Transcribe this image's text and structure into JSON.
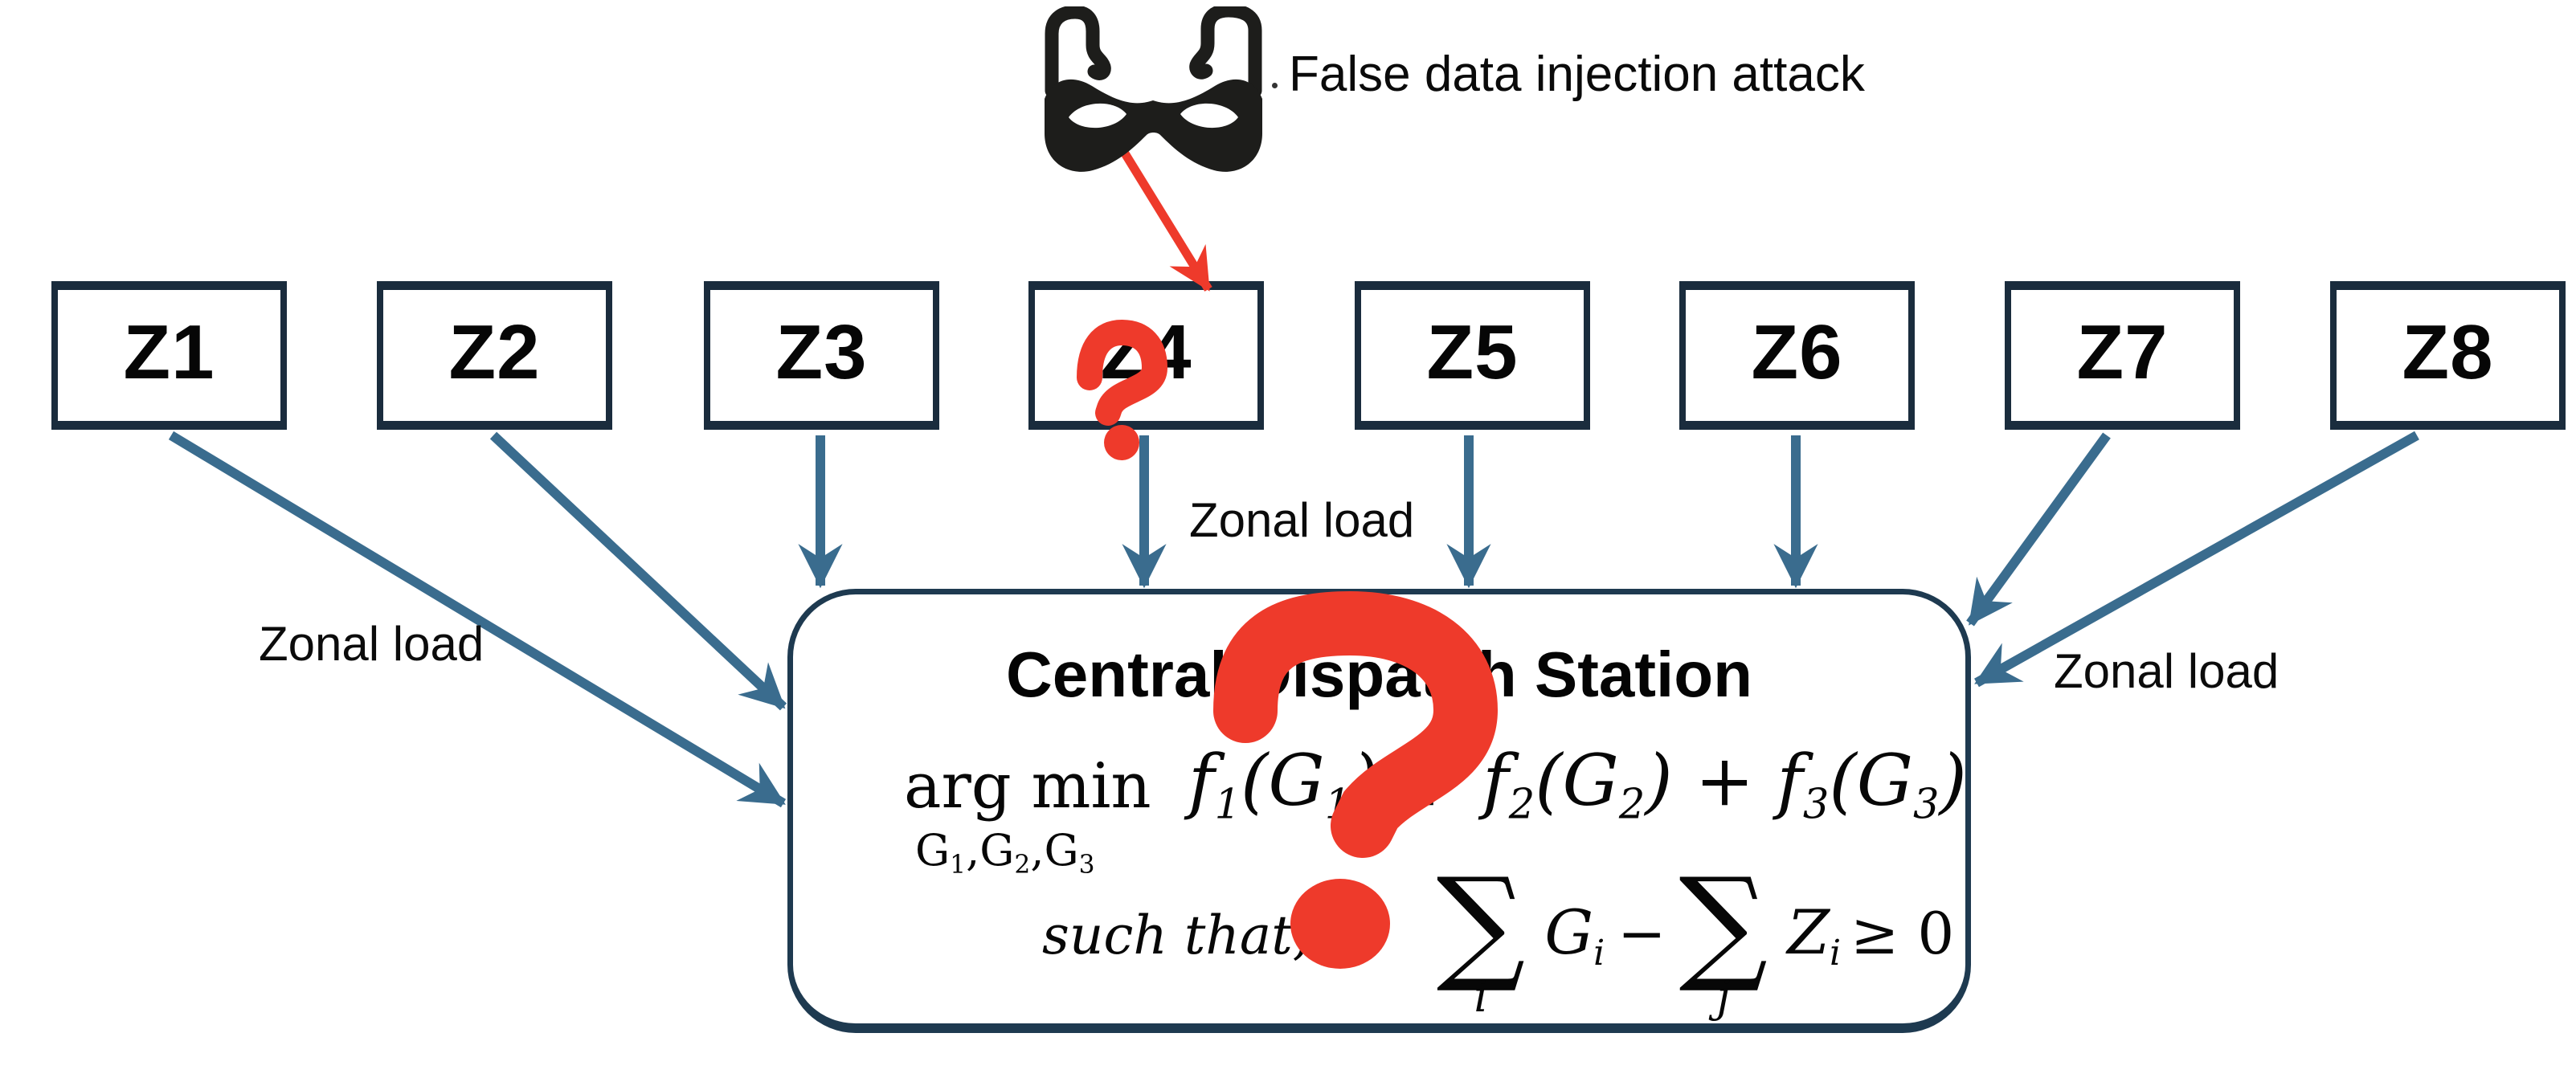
{
  "attack": {
    "label": "False data injection attack",
    "icon": "burglar-mask-icon",
    "target_zone": "Z4"
  },
  "zones": [
    "Z1",
    "Z2",
    "Z3",
    "Z4",
    "Z5",
    "Z6",
    "Z7",
    "Z8"
  ],
  "arrow_labels": {
    "left": "Zonal load",
    "middle": "Zonal load",
    "right": "Zonal load"
  },
  "station": {
    "title": "Central Dispatch Station",
    "argmin_top": "arg min",
    "argmin_bottom": [
      {
        "t": "G",
        "sub": "1"
      },
      {
        "t": ","
      },
      {
        "t": "G",
        "sub": "2"
      },
      {
        "t": ","
      },
      {
        "t": "G",
        "sub": "3"
      }
    ],
    "objective": [
      {
        "t": "f",
        "sub": "1"
      },
      {
        "t": "(G",
        "sub": "1"
      },
      {
        "t": ") + f",
        "sub": "2"
      },
      {
        "t": "(G",
        "sub": "2"
      },
      {
        "t": ") + f",
        "sub": "3"
      },
      {
        "t": "(G",
        "sub": "3"
      },
      {
        "t": ")"
      }
    ],
    "such_that": "such that,",
    "constraint": [
      {
        "sum": "∑",
        "under": "i"
      },
      {
        "t": "G",
        "sub": "i"
      },
      {
        "op": "−"
      },
      {
        "sum": "∑",
        "under": "j"
      },
      {
        "t": "Z",
        "sub": "i"
      },
      {
        "op": "≥ 0",
        "geq": true
      }
    ]
  },
  "marks": {
    "zone_overlay": "?",
    "station_overlay": "?"
  },
  "colors": {
    "arrow_blue": "#3a6c8e",
    "box_border_navy": "#1a2c3d",
    "station_border_navy": "#1e3a50",
    "alert_red": "#ee3a2b",
    "mask_black": "#1d1d1b"
  }
}
